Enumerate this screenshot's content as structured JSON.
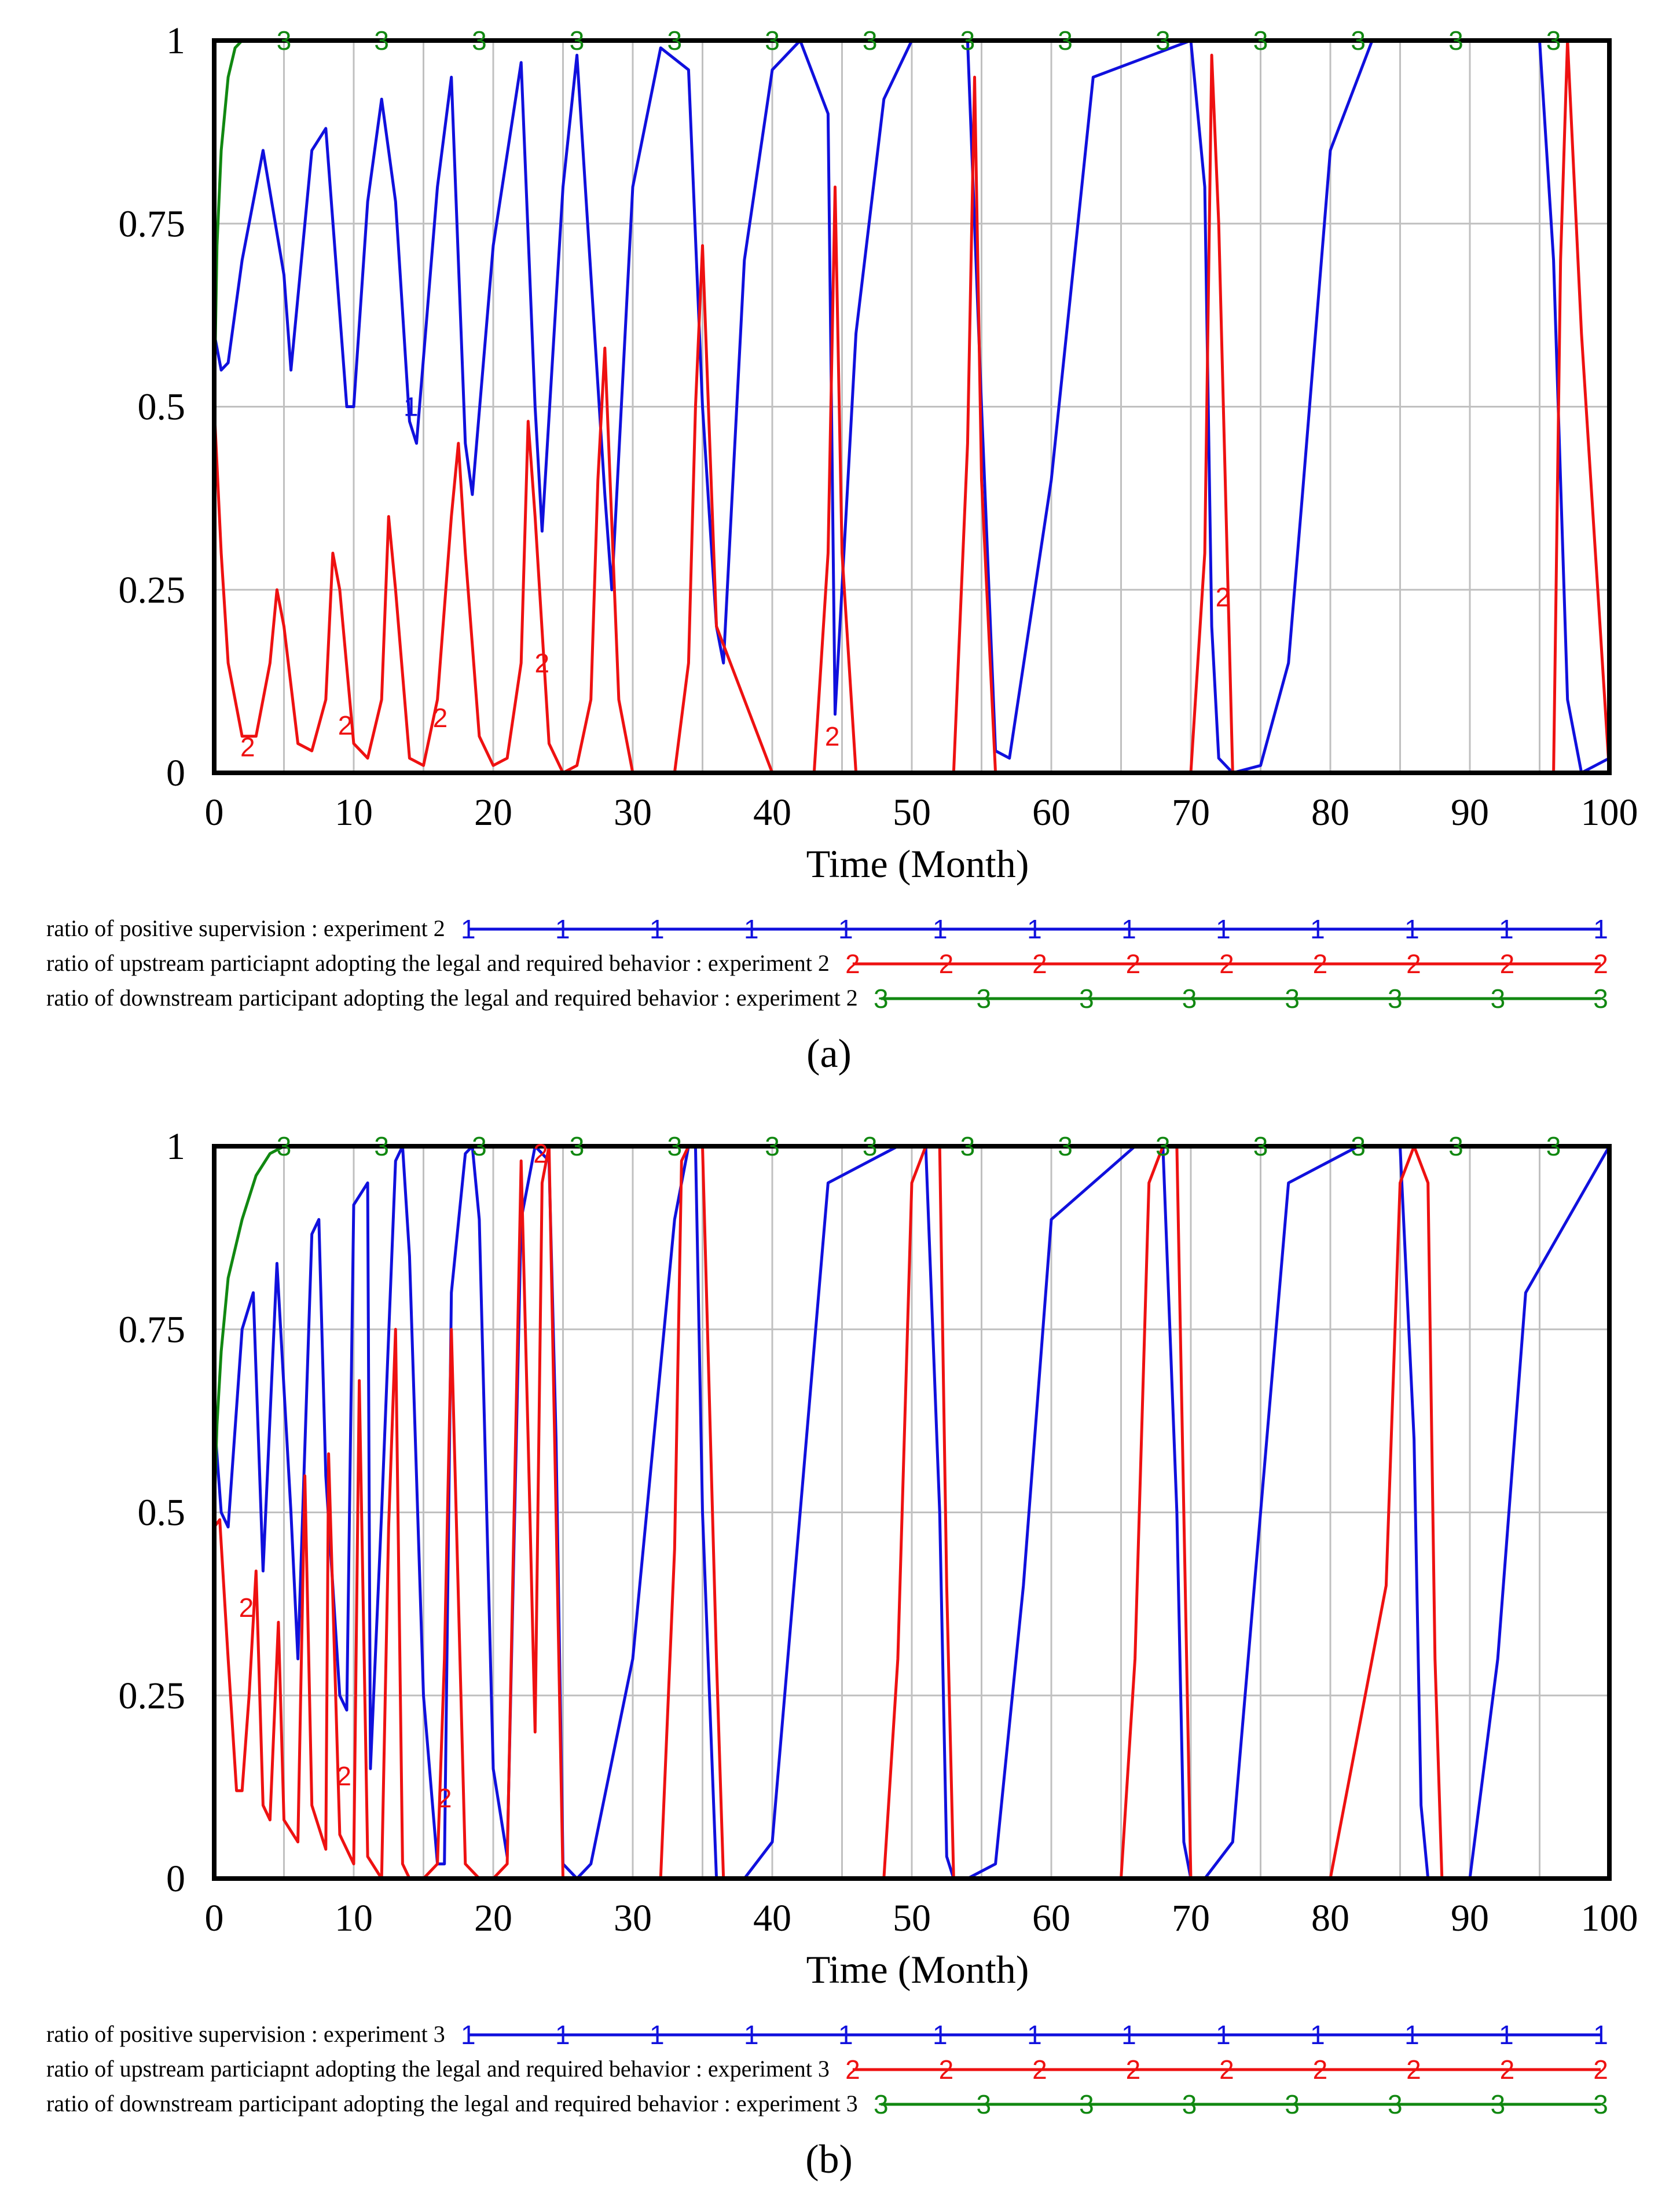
{
  "chart_data": [
    {
      "type": "line",
      "panel_label": "a",
      "xlabel": "Time (Month)",
      "ylabel": "",
      "xlim": [
        0,
        100
      ],
      "ylim": [
        0,
        1
      ],
      "x_ticks": [
        "0",
        "10",
        "20",
        "30",
        "40",
        "50",
        "60",
        "70",
        "80",
        "90",
        "100"
      ],
      "y_ticks": [
        "0",
        "0.25",
        "0.5",
        "0.75",
        "1"
      ],
      "grid": true,
      "legend_position": "bottom",
      "series": [
        {
          "id": 1,
          "name": "ratio of positive supervision : experiment 2",
          "marker": "1",
          "color": "#1010dd",
          "x": [
            0,
            0.5,
            1,
            2,
            3.5,
            5,
            5.5,
            7,
            8,
            9.5,
            10,
            11,
            12,
            13,
            14,
            14.5,
            16,
            17,
            18,
            18.5,
            20,
            22,
            23,
            23.5,
            25,
            26,
            28,
            28.5,
            30,
            32,
            34,
            35,
            36,
            36.5,
            38,
            40,
            42,
            44,
            44.5,
            46,
            48,
            50,
            54,
            55,
            56,
            57,
            60,
            63,
            70,
            71,
            71.5,
            72,
            73,
            75,
            77,
            78,
            80,
            83,
            95,
            96,
            97,
            98,
            99,
            100
          ],
          "values": [
            0.6,
            0.55,
            0.56,
            0.7,
            0.85,
            0.68,
            0.55,
            0.85,
            0.88,
            0.5,
            0.5,
            0.78,
            0.92,
            0.78,
            0.48,
            0.45,
            0.8,
            0.95,
            0.45,
            0.38,
            0.72,
            0.97,
            0.5,
            0.33,
            0.8,
            0.98,
            0.38,
            0.25,
            0.8,
            0.99,
            0.96,
            0.5,
            0.2,
            0.15,
            0.7,
            0.96,
            1,
            0.9,
            0.08,
            0.6,
            0.92,
            1,
            1,
            0.5,
            0.03,
            0.02,
            0.4,
            0.95,
            1,
            0.8,
            0.2,
            0.02,
            0,
            0.01,
            0.15,
            0.38,
            0.85,
            1,
            1,
            0.7,
            0.1,
            0,
            0.01,
            0.02
          ]
        },
        {
          "id": 2,
          "name": "ratio of upstream particiapnt adopting the legal and required behavior : experiment 2",
          "marker": "2",
          "color": "#ee1111",
          "x": [
            0,
            0.5,
            1,
            2,
            3,
            4,
            4.5,
            5,
            6,
            7,
            8,
            8.5,
            9,
            10,
            11,
            12,
            12.5,
            13,
            14,
            15,
            16,
            17,
            17.5,
            18,
            19,
            20,
            21,
            22,
            22.5,
            23,
            24,
            25,
            26,
            27,
            27.5,
            28,
            29,
            30,
            33,
            34,
            34.5,
            35,
            36,
            40,
            43,
            44,
            44.5,
            45,
            46,
            50,
            53,
            54,
            54.5,
            55,
            56,
            70,
            71,
            71.5,
            72,
            73,
            95,
            96,
            96.5,
            97,
            98,
            100
          ],
          "values": [
            0.5,
            0.3,
            0.15,
            0.05,
            0.05,
            0.15,
            0.25,
            0.2,
            0.04,
            0.03,
            0.1,
            0.3,
            0.25,
            0.04,
            0.02,
            0.1,
            0.35,
            0.25,
            0.02,
            0.01,
            0.1,
            0.35,
            0.45,
            0.3,
            0.05,
            0.01,
            0.02,
            0.15,
            0.48,
            0.35,
            0.04,
            0,
            0.01,
            0.1,
            0.4,
            0.58,
            0.1,
            0,
            0,
            0.15,
            0.5,
            0.72,
            0.2,
            0,
            0,
            0.3,
            0.8,
            0.3,
            0,
            0,
            0,
            0.45,
            0.95,
            0.4,
            0,
            0,
            0.3,
            0.98,
            0.75,
            0,
            0,
            0,
            0.7,
            1,
            0.6,
            0
          ]
        },
        {
          "id": 3,
          "name": "ratio of downstream participant adopting the legal and required behavior : experiment 2",
          "marker": "3",
          "color": "#118811",
          "x": [
            0,
            0.2,
            0.5,
            1,
            1.5,
            2,
            3,
            100
          ],
          "values": [
            0.5,
            0.72,
            0.85,
            0.95,
            0.99,
            1,
            1,
            1
          ]
        }
      ],
      "point_labels": [
        {
          "series": 1,
          "x": 14.1,
          "y": 0.5,
          "text": "1"
        },
        {
          "series": 2,
          "x": 2.4,
          "y": 0.035,
          "text": "2"
        },
        {
          "series": 2,
          "x": 9.4,
          "y": 0.065,
          "text": "2"
        },
        {
          "series": 2,
          "x": 16.2,
          "y": 0.075,
          "text": "2"
        },
        {
          "series": 2,
          "x": 23.5,
          "y": 0.15,
          "text": "2"
        },
        {
          "series": 2,
          "x": 72.3,
          "y": 0.24,
          "text": "2"
        },
        {
          "series": 2,
          "x": 44.3,
          "y": 0.05,
          "text": "2"
        }
      ]
    },
    {
      "type": "line",
      "panel_label": "b",
      "xlabel": "Time (Month)",
      "ylabel": "",
      "xlim": [
        0,
        100
      ],
      "ylim": [
        0,
        1
      ],
      "x_ticks": [
        "0",
        "10",
        "20",
        "30",
        "40",
        "50",
        "60",
        "70",
        "80",
        "90",
        "100"
      ],
      "y_ticks": [
        "0",
        "0.25",
        "0.5",
        "0.75",
        "1"
      ],
      "grid": true,
      "legend_position": "bottom",
      "series": [
        {
          "id": 1,
          "name": "ratio of positive supervision : experiment 3",
          "marker": "1",
          "color": "#1010dd",
          "x": [
            0,
            0.5,
            1,
            2,
            2.8,
            3.5,
            4.5,
            5.5,
            6,
            7,
            7.5,
            8,
            9,
            9.5,
            10,
            11,
            11.2,
            12,
            13,
            13.5,
            14,
            15,
            16,
            16.5,
            17,
            18,
            18.5,
            19,
            20,
            21,
            22,
            23,
            24,
            24.5,
            25,
            26,
            27,
            30,
            33,
            34,
            34.5,
            35,
            36,
            38,
            40,
            42,
            44,
            49,
            51,
            52,
            52.5,
            53,
            54,
            56,
            58,
            60,
            66,
            68,
            69,
            69.5,
            70,
            71,
            73,
            75,
            77,
            82,
            85,
            86,
            86.5,
            87,
            88,
            90,
            92,
            94,
            100
          ],
          "values": [
            0.63,
            0.5,
            0.48,
            0.75,
            0.8,
            0.42,
            0.84,
            0.5,
            0.3,
            0.88,
            0.9,
            0.55,
            0.25,
            0.23,
            0.92,
            0.95,
            0.15,
            0.5,
            0.98,
            1,
            0.85,
            0.25,
            0.02,
            0.02,
            0.8,
            0.99,
            1,
            0.9,
            0.15,
            0.03,
            0.9,
            1,
            0.98,
            0.6,
            0.02,
            0,
            0.02,
            0.3,
            0.9,
            1,
            1,
            0.5,
            0,
            0,
            0.05,
            0.5,
            0.95,
            1,
            1,
            0.5,
            0.03,
            0,
            0,
            0.02,
            0.4,
            0.9,
            1,
            1,
            0.5,
            0.05,
            0,
            0,
            0.05,
            0.5,
            0.95,
            1,
            1,
            0.6,
            0.1,
            0,
            0,
            0,
            0.3,
            0.8,
            1
          ]
        },
        {
          "id": 2,
          "name": "ratio of upstream particiapnt adopting the legal and required behavior : experiment 3",
          "marker": "2",
          "color": "#ee1111",
          "x": [
            0,
            0.4,
            1,
            1.6,
            2,
            2.5,
            3,
            3.5,
            4,
            4.6,
            5,
            6,
            6.5,
            7,
            8,
            8.2,
            9,
            10,
            10.4,
            11,
            12,
            12.5,
            13,
            13.5,
            14,
            15,
            16,
            16.5,
            17,
            18,
            19,
            20,
            21,
            21.5,
            22,
            22.5,
            23,
            23.5,
            24,
            24.5,
            25,
            30,
            32,
            33,
            33.5,
            34,
            35,
            36,
            36.5,
            40,
            48,
            49,
            50,
            51,
            52,
            52.5,
            53,
            60,
            65,
            66,
            67,
            68,
            69,
            69.5,
            70,
            71,
            80,
            84,
            85,
            86,
            87,
            87.5,
            88,
            100
          ],
          "values": [
            0.48,
            0.49,
            0.3,
            0.12,
            0.12,
            0.25,
            0.42,
            0.1,
            0.08,
            0.35,
            0.08,
            0.05,
            0.55,
            0.1,
            0.04,
            0.58,
            0.06,
            0.02,
            0.68,
            0.03,
            0,
            0.48,
            0.75,
            0.02,
            0,
            0,
            0.02,
            0.3,
            0.75,
            0.02,
            0,
            0,
            0.02,
            0.5,
            0.98,
            0.6,
            0.2,
            0.95,
            1,
            0.5,
            0,
            0,
            0,
            0.45,
            0.98,
            1,
            1,
            0.3,
            0,
            0,
            0,
            0.3,
            0.95,
            1,
            1,
            0.4,
            0,
            0,
            0,
            0.3,
            0.95,
            1,
            1,
            0.5,
            0,
            0,
            0,
            0.4,
            0.95,
            1,
            0.95,
            0.3,
            0,
            0
          ]
        },
        {
          "id": 3,
          "name": "ratio of downstream participant adopting the legal and required behavior : experiment 3",
          "marker": "3",
          "color": "#118811",
          "x": [
            0,
            0.2,
            0.5,
            1,
            2,
            3,
            4,
            5,
            100
          ],
          "values": [
            0.5,
            0.62,
            0.72,
            0.82,
            0.9,
            0.96,
            0.99,
            1,
            1
          ]
        }
      ],
      "point_labels": [
        {
          "series": 2,
          "x": 2.3,
          "y": 0.37,
          "text": "2"
        },
        {
          "series": 2,
          "x": 9.3,
          "y": 0.14,
          "text": "2"
        },
        {
          "series": 2,
          "x": 16.5,
          "y": 0.11,
          "text": "2"
        },
        {
          "series": 2,
          "x": 23.4,
          "y": 0.99,
          "text": "2"
        }
      ]
    }
  ],
  "legends": [
    [
      {
        "series": 1,
        "text": "ratio of positive supervision : experiment 2"
      },
      {
        "series": 2,
        "text": "ratio of upstream particiapnt adopting the legal and required behavior : experiment 2"
      },
      {
        "series": 3,
        "text": "ratio of downstream participant adopting the legal and required behavior : experiment 2"
      }
    ],
    [
      {
        "series": 1,
        "text": "ratio of positive supervision : experiment 3"
      },
      {
        "series": 2,
        "text": "ratio of upstream particiapnt adopting the legal and required behavior : experiment 3"
      },
      {
        "series": 3,
        "text": "ratio of downstream participant adopting the legal and required behavior : experiment 3"
      }
    ]
  ],
  "captions": [
    "(a)",
    "(b)"
  ],
  "colors": {
    "series_1": "#1010dd",
    "series_2": "#ee1111",
    "series_3": "#118811",
    "grid": "#c0c0c0",
    "frame": "#000000"
  }
}
